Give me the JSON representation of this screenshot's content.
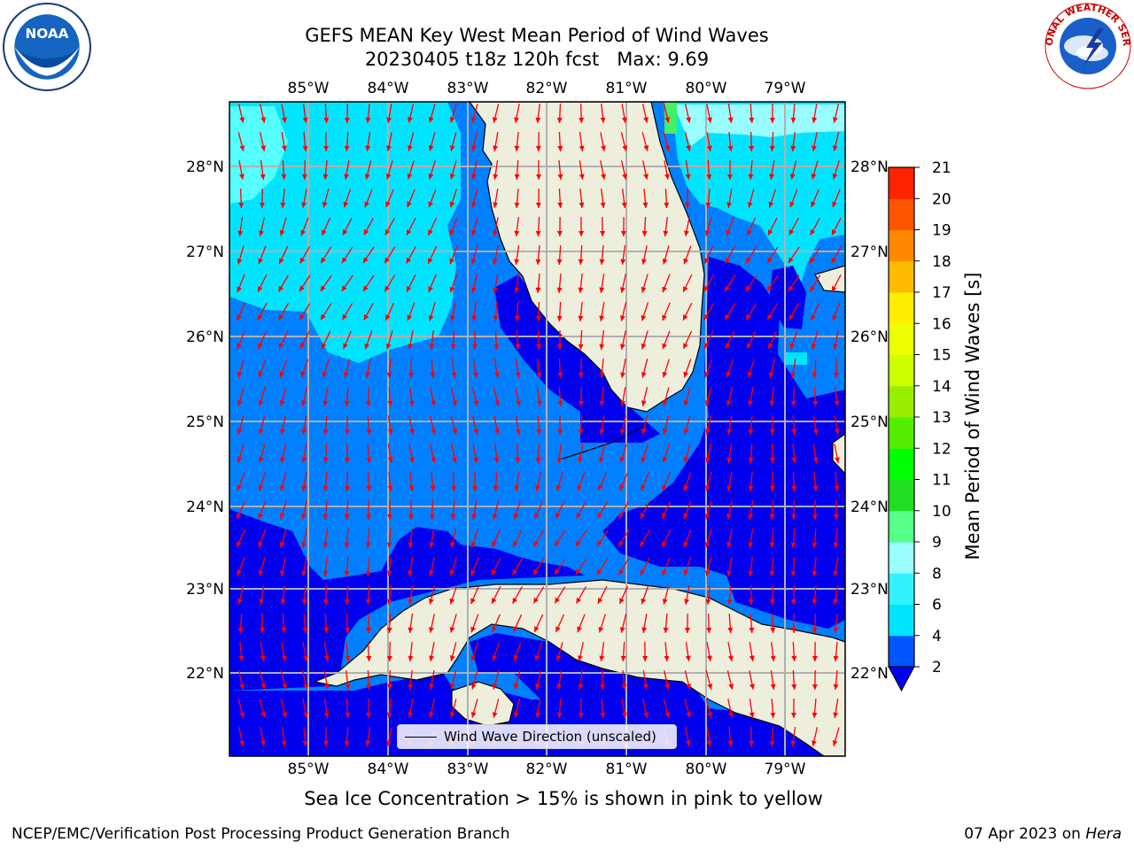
{
  "title_line1": "GEFS MEAN Key West Mean Period of Wind Waves",
  "title_line2": "20230405 t18z 120h fcst   Max: 9.69",
  "noaa_logo_text": "NOAA",
  "nws_logo_text": "NATIONAL WEATHER SERVICE",
  "lon_labels": [
    "85°W",
    "84°W",
    "83°W",
    "82°W",
    "81°W",
    "80°W",
    "79°W"
  ],
  "lat_labels_left": [
    "28°N",
    "27°N",
    "26°N",
    "25°N",
    "24°N",
    "23°N",
    "22°N"
  ],
  "lat_labels_right": [
    "28°N",
    "27°N",
    "26°N",
    "25°N",
    "24°N",
    "23°N",
    "22°N"
  ],
  "colorbar": {
    "label": "Mean Period of Wind Waves [s]",
    "ticks": [
      "2",
      "4",
      "6",
      "8",
      "9",
      "10",
      "11",
      "12",
      "13",
      "14",
      "15",
      "16",
      "17",
      "18",
      "19",
      "20",
      "21"
    ],
    "colors": [
      "#0055ff",
      "#00e5ff",
      "#33f2ff",
      "#99fdff",
      "#55ff88",
      "#22dd22",
      "#00ff00",
      "#55ee00",
      "#99ee00",
      "#ccff00",
      "#eeff00",
      "#ffee00",
      "#ffbb00",
      "#ff8800",
      "#ff5500",
      "#ff2200"
    ],
    "under_color": "#0000ee"
  },
  "legend_label": "Wind Wave Direction (unscaled)",
  "caption": "Sea Ice Concentration > 15% is shown in pink to yellow",
  "footer_left": "NCEP/EMC/Verification Post Processing Product Generation Branch",
  "footer_date": "07 Apr 2023 on",
  "footer_machine": "Hera",
  "colors": {
    "land": "#eeeedd",
    "arrow": "#ff0000",
    "grid": "#b0b0b0",
    "period_2_4": "#0080ff",
    "period_lt2": "#0000ee",
    "period_4_6": "#00e5ff",
    "period_6_8": "#55ffff"
  }
}
